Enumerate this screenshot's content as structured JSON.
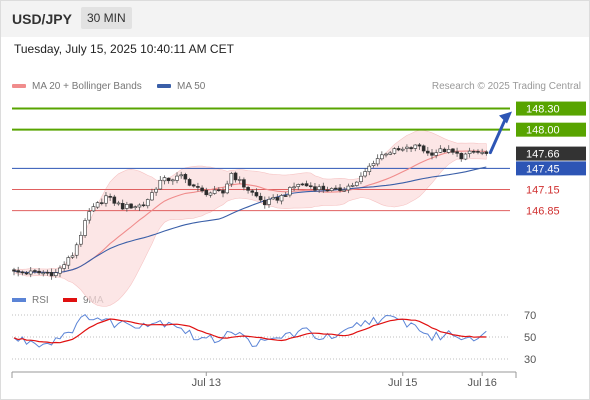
{
  "header": {
    "symbol": "USD/JPY",
    "timeframe": "30 MIN",
    "datetime": "Tuesday, July 15, 2025 10:40:11 AM CET",
    "credit": "Research © 2025 Trading Central"
  },
  "legend": {
    "ma20_label": "MA 20 + Bollinger Bands",
    "ma50_label": "MA 50",
    "ma20_color": "#f08c8c",
    "ma50_color": "#3a5fa8"
  },
  "rsi_legend": {
    "rsi_label": "RSI",
    "ma9_label": "9MA",
    "rsi_color": "#5b84d6",
    "ma9_color": "#e01010"
  },
  "colors": {
    "resistance": "#58a400",
    "pivot": "#2d55b5",
    "support": "#e06060",
    "current": "#333333",
    "arrow": "#2d55b5"
  },
  "chart_data": {
    "type": "candlestick",
    "price_levels": [
      {
        "label": "148.30",
        "value": 148.3,
        "kind": "resistance"
      },
      {
        "label": "148.00",
        "value": 148.0,
        "kind": "resistance"
      },
      {
        "label": "147.66",
        "value": 147.66,
        "kind": "current"
      },
      {
        "label": "147.45",
        "value": 147.45,
        "kind": "pivot"
      },
      {
        "label": "147.15",
        "value": 147.15,
        "kind": "support"
      },
      {
        "label": "146.85",
        "value": 146.85,
        "kind": "support"
      }
    ],
    "x_ticks": [
      "Jul 13",
      "Jul 15",
      "Jul 16"
    ],
    "rsi_ticks": [
      "70",
      "50",
      "30"
    ],
    "rsi_levels": [
      70,
      50,
      30
    ],
    "ylim": [
      145.75,
      148.45
    ],
    "rsi_ylim": [
      20,
      80
    ],
    "price_anchors": [
      [
        0,
        145.97
      ],
      [
        10,
        145.96
      ],
      [
        14,
        146.22
      ],
      [
        18,
        146.82
      ],
      [
        22,
        147.05
      ],
      [
        26,
        146.9
      ],
      [
        31,
        146.93
      ],
      [
        35,
        147.27
      ],
      [
        40,
        147.33
      ],
      [
        45,
        147.11
      ],
      [
        50,
        147.1
      ],
      [
        52,
        147.38
      ],
      [
        55,
        147.2
      ],
      [
        60,
        146.95
      ],
      [
        64,
        147.05
      ],
      [
        68,
        147.23
      ],
      [
        72,
        147.18
      ],
      [
        77,
        147.13
      ],
      [
        82,
        147.24
      ],
      [
        86,
        147.55
      ],
      [
        89,
        147.68
      ],
      [
        93,
        147.71
      ],
      [
        97,
        147.77
      ],
      [
        99,
        147.66
      ],
      [
        103,
        147.71
      ],
      [
        107,
        147.62
      ],
      [
        110,
        147.68
      ],
      [
        113,
        147.66
      ]
    ],
    "rsi_anchors": [
      [
        0,
        48
      ],
      [
        8,
        44
      ],
      [
        14,
        58
      ],
      [
        18,
        70
      ],
      [
        23,
        63
      ],
      [
        28,
        62
      ],
      [
        33,
        63
      ],
      [
        38,
        64
      ],
      [
        43,
        50
      ],
      [
        48,
        47
      ],
      [
        52,
        57
      ],
      [
        56,
        46
      ],
      [
        60,
        44
      ],
      [
        65,
        52
      ],
      [
        70,
        55
      ],
      [
        74,
        49
      ],
      [
        78,
        50
      ],
      [
        82,
        60
      ],
      [
        86,
        66
      ],
      [
        90,
        66
      ],
      [
        94,
        63
      ],
      [
        97,
        58
      ],
      [
        100,
        49
      ],
      [
        104,
        53
      ],
      [
        108,
        50
      ],
      [
        113,
        52
      ]
    ],
    "forecast": {
      "from_index": 113,
      "from": 147.66,
      "to": 148.3
    }
  }
}
